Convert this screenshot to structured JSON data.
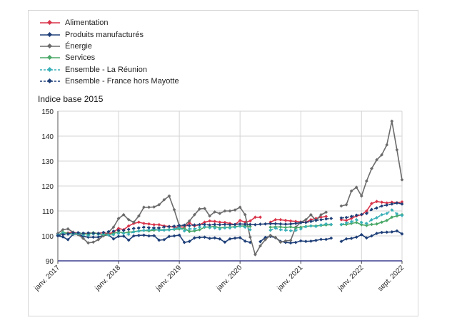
{
  "chart_data": {
    "type": "line",
    "ylabel": "Indice base 2015",
    "ylim": [
      90,
      150
    ],
    "yticks": [
      90,
      100,
      110,
      120,
      130,
      140,
      150
    ],
    "xticks": [
      {
        "label": "janv. 2017",
        "index": 0
      },
      {
        "label": "janv. 2018",
        "index": 12
      },
      {
        "label": "janv. 2019",
        "index": 24
      },
      {
        "label": "janv. 2020",
        "index": 36
      },
      {
        "label": "janv. 2021",
        "index": 48
      },
      {
        "label": "janv. 2022",
        "index": 60
      },
      {
        "label": "sept. 2022",
        "index": 68
      }
    ],
    "x_count": 69,
    "series": [
      {
        "name": "Alimentation",
        "color": "#d9344a",
        "dashed": false,
        "values": [
          100.5,
          101.0,
          101.2,
          101.5,
          101.0,
          100.8,
          101.0,
          101.2,
          101.0,
          101.3,
          100.8,
          101.5,
          103.0,
          102.5,
          104.0,
          105.0,
          105.5,
          105.0,
          104.8,
          104.5,
          104.5,
          104.0,
          103.8,
          103.5,
          103.6,
          103.5,
          105.2,
          104.0,
          104.5,
          105.5,
          106.0,
          105.8,
          105.5,
          105.4,
          105.0,
          104.5,
          106.2,
          105.5,
          106.0,
          107.5,
          107.5,
          null,
          105.5,
          106.5,
          106.5,
          106.2,
          106.0,
          105.8,
          105.6,
          105.5,
          106.5,
          107.0,
          107.5,
          107.8,
          null,
          null,
          106.5,
          106.2,
          107.0,
          108.0,
          108.5,
          110.0,
          113.0,
          113.8,
          113.5,
          113.2,
          113.5,
          113.3,
          113.6
        ]
      },
      {
        "name": "Produits manufacturés",
        "color": "#1e3f78",
        "dashed": false,
        "values": [
          100.0,
          99.6,
          98.5,
          100.6,
          100.8,
          99.8,
          99.5,
          99.5,
          99.5,
          100.2,
          100.4,
          98.8,
          99.8,
          99.9,
          98.3,
          100.0,
          100.2,
          100.3,
          100.0,
          100.1,
          98.3,
          98.5,
          99.8,
          100.0,
          100.3,
          97.4,
          97.8,
          99.2,
          99.4,
          99.5,
          99.0,
          99.2,
          98.8,
          97.5,
          98.8,
          99.1,
          99.3,
          97.9,
          97.4,
          null,
          97.7,
          99.4,
          99.8,
          99.3,
          97.8,
          97.4,
          97.2,
          97.4,
          98.0,
          97.8,
          97.9,
          98.2,
          98.6,
          98.6,
          99.1,
          null,
          97.8,
          98.8,
          99.0,
          99.5,
          100.5,
          99.2,
          100.0,
          101.0,
          101.4,
          101.5,
          101.6,
          102.0,
          100.8
        ]
      },
      {
        "name": "Énergie",
        "color": "#6b6b6b",
        "dashed": false,
        "values": [
          101.0,
          102.5,
          102.8,
          101.5,
          100.5,
          99.0,
          97.2,
          97.5,
          98.5,
          100.0,
          101.5,
          103.5,
          107.0,
          108.5,
          106.5,
          105.5,
          108.0,
          111.5,
          111.5,
          111.6,
          112.5,
          114.5,
          116.0,
          110.5,
          104.0,
          104.2,
          106.0,
          108.5,
          110.8,
          111.0,
          108.0,
          109.6,
          109.0,
          110.0,
          110.0,
          110.4,
          111.5,
          108.5,
          99.5,
          92.5,
          96.0,
          98.5,
          100.2,
          99.4,
          97.5,
          98.0,
          98.2,
          103.5,
          105.5,
          106.5,
          108.5,
          106.2,
          108.5,
          109.5,
          null,
          null,
          112.0,
          112.5,
          118.0,
          119.5,
          116.0,
          122.0,
          127.0,
          130.5,
          132.5,
          136.5,
          146.0,
          134.5,
          122.5
        ]
      },
      {
        "name": "Services",
        "color": "#4aa868",
        "dashed": false,
        "values": [
          100.2,
          101.5,
          101.0,
          100.8,
          101.0,
          101.0,
          100.6,
          101.3,
          100.8,
          100.5,
          100.4,
          101.0,
          101.6,
          101.2,
          101.5,
          101.7,
          102.0,
          102.2,
          102.0,
          102.3,
          102.5,
          102.4,
          102.6,
          102.6,
          102.8,
          103.0,
          101.8,
          102.0,
          102.5,
          103.5,
          103.6,
          103.8,
          103.2,
          103.4,
          103.5,
          103.7,
          103.9,
          104.0,
          103.8,
          null,
          null,
          null,
          103.5,
          103.6,
          103.6,
          103.4,
          103.6,
          103.2,
          103.5,
          103.8,
          104.0,
          104.0,
          104.2,
          104.4,
          104.5,
          null,
          104.5,
          104.6,
          105.0,
          105.4,
          104.5,
          104.2,
          104.6,
          104.8,
          105.5,
          106.2,
          107.5,
          108.0,
          108.5
        ]
      },
      {
        "name": "Ensemble - La Réunion",
        "color": "#3ab0b8",
        "dashed": true,
        "values": [
          100.4,
          101.1,
          100.7,
          100.9,
          100.9,
          100.5,
          100.2,
          100.8,
          100.6,
          100.8,
          100.4,
          100.5,
          101.0,
          101.0,
          100.7,
          101.6,
          101.9,
          102.2,
          102.4,
          102.8,
          102.2,
          102.3,
          102.4,
          102.8,
          103.4,
          102.0,
          102.8,
          102.8,
          103.5,
          103.7,
          103.3,
          103.2,
          102.8,
          103.2,
          103.2,
          103.5,
          104.0,
          103.5,
          102.5,
          null,
          null,
          null,
          102.3,
          103.1,
          102.5,
          102.3,
          102.1,
          102.2,
          102.8,
          103.7,
          104.0,
          103.8,
          104.4,
          104.8,
          104.6,
          null,
          104.6,
          105.2,
          105.7,
          106.5,
          105.4,
          105.0,
          106.5,
          107.3,
          108.5,
          109.0,
          110.4,
          108.8,
          108.2
        ]
      },
      {
        "name": "Ensemble - France hors Mayotte",
        "color": "#1e3f78",
        "dashed": true,
        "values": [
          100.1,
          100.5,
          100.8,
          101.2,
          101.3,
          101.1,
          101.2,
          101.1,
          101.0,
          101.4,
          101.7,
          101.9,
          102.2,
          102.2,
          102.6,
          103.0,
          103.2,
          103.5,
          103.3,
          103.2,
          103.2,
          103.6,
          103.7,
          103.9,
          104.2,
          104.3,
          104.1,
          104.4,
          104.5,
          104.6,
          104.4,
          104.6,
          104.5,
          104.6,
          104.5,
          104.6,
          104.8,
          104.7,
          104.6,
          104.5,
          104.7,
          104.8,
          104.9,
          104.9,
          104.8,
          104.7,
          104.8,
          105.0,
          105.3,
          105.4,
          105.8,
          106.2,
          106.5,
          106.8,
          107.0,
          null,
          107.2,
          107.4,
          107.8,
          108.3,
          108.6,
          109.0,
          110.6,
          111.2,
          112.0,
          112.4,
          112.8,
          113.2,
          112.8
        ]
      }
    ]
  }
}
